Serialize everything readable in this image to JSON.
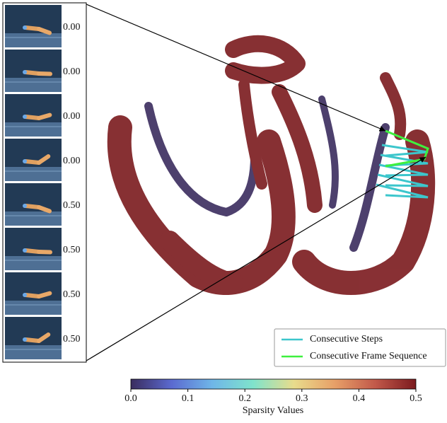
{
  "chart_data": {
    "type": "scatter",
    "frame_labels": [
      "0.00",
      "0.00",
      "0.00",
      "0.00",
      "0.50",
      "0.50",
      "0.50",
      "0.50"
    ],
    "series": [
      {
        "name": "Consecutive Steps",
        "color": "#3cc6cc"
      },
      {
        "name": "Consecutive Frame Sequence",
        "color": "#3ef03e"
      }
    ],
    "colorbar": {
      "label": "Sparsity Values",
      "clim": [
        0,
        0.5
      ],
      "ticks": [
        {
          "value": 0,
          "label": "0.0"
        },
        0.1,
        0.2,
        0.3,
        0.4,
        0.5
      ],
      "colors": [
        "#3a2c5e",
        "#5b6ad0",
        "#6fb6e8",
        "#7fe3cc",
        "#e8dc8c",
        "#e7a068",
        "#c2594a",
        "#7b1a1e"
      ]
    }
  }
}
